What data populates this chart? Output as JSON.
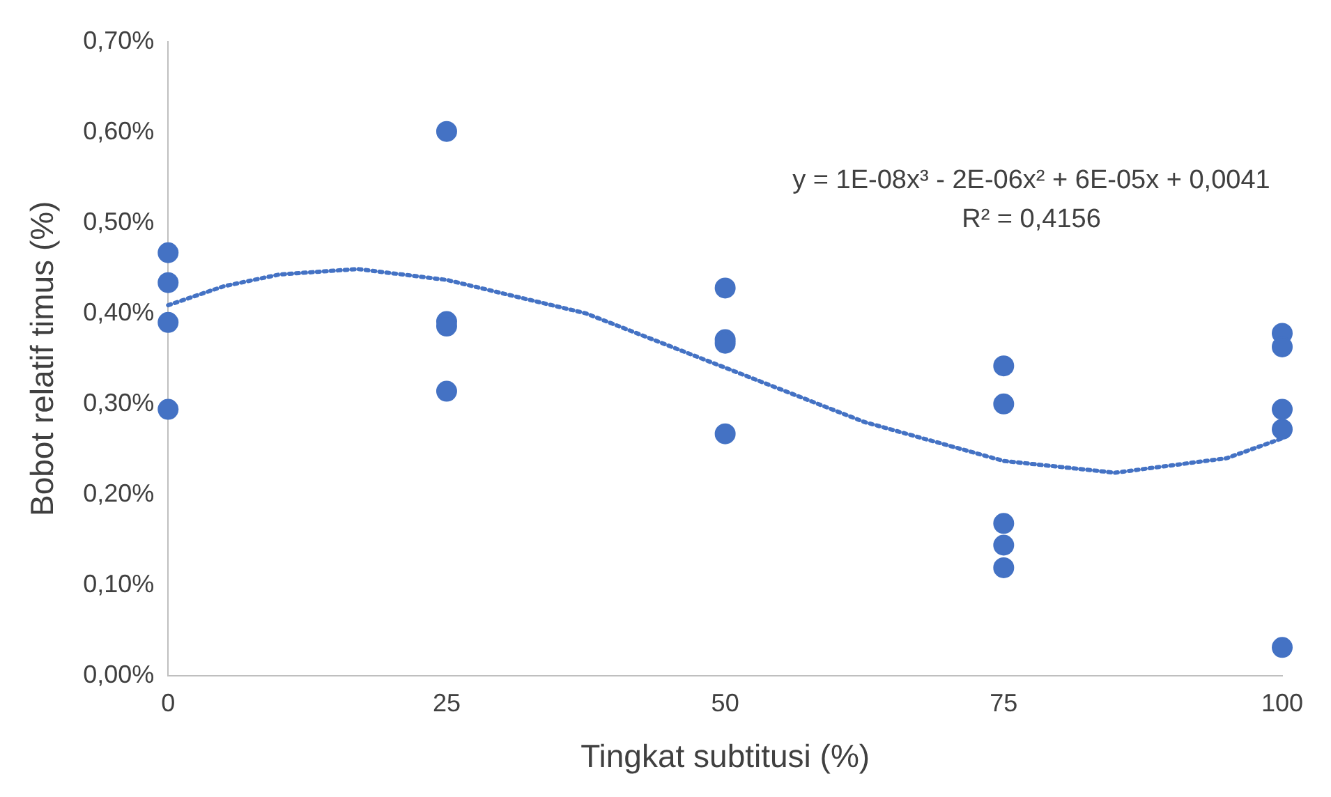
{
  "chart_data": {
    "type": "scatter",
    "xlabel": "Tingkat subtitusi (%)",
    "ylabel": "Bobot relatif timus (%)",
    "xlim": [
      0,
      100
    ],
    "xticks": [
      0,
      25,
      50,
      75,
      100
    ],
    "ylim": [
      0,
      0.7
    ],
    "yticks": [
      {
        "value": 0,
        "label": "0,00%"
      },
      {
        "value": 0.1,
        "label": "0,10%"
      },
      {
        "value": 0.2,
        "label": "0,20%"
      },
      {
        "value": 0.3,
        "label": "0,30%"
      },
      {
        "value": 0.4,
        "label": "0,40%"
      },
      {
        "value": 0.5,
        "label": "0,50%"
      },
      {
        "value": 0.6,
        "label": "0,60%"
      },
      {
        "value": 0.7,
        "label": "0,70%"
      }
    ],
    "grid": false,
    "legend": false,
    "marker": "circle",
    "series": [
      {
        "type": "scatter",
        "color": "#4472c4",
        "x": [
          0,
          0,
          0,
          0,
          25,
          25,
          25,
          25,
          50,
          50,
          50,
          50,
          75,
          75,
          75,
          75,
          75,
          100,
          100,
          100,
          100,
          100
        ],
        "values": [
          0.467,
          0.434,
          0.39,
          0.294,
          0.601,
          0.391,
          0.386,
          0.314,
          0.428,
          0.371,
          0.367,
          0.267,
          0.342,
          0.3,
          0.168,
          0.144,
          0.119,
          0.378,
          0.363,
          0.294,
          0.272,
          0.031
        ]
      },
      {
        "type": "line",
        "color": "#4472c4",
        "line_style": "dotted",
        "marker": "none",
        "x": [
          0,
          5,
          10,
          17,
          25,
          37.5,
          50,
          62.5,
          75,
          85,
          95,
          100
        ],
        "values": [
          0.409,
          0.43,
          0.443,
          0.449,
          0.437,
          0.4,
          0.34,
          0.28,
          0.237,
          0.224,
          0.24,
          0.262
        ]
      }
    ],
    "annotations": [
      "y = 1E-08x³ - 2E-06x² + 6E-05x + 0,0041",
      "R² = 0,4156"
    ]
  }
}
